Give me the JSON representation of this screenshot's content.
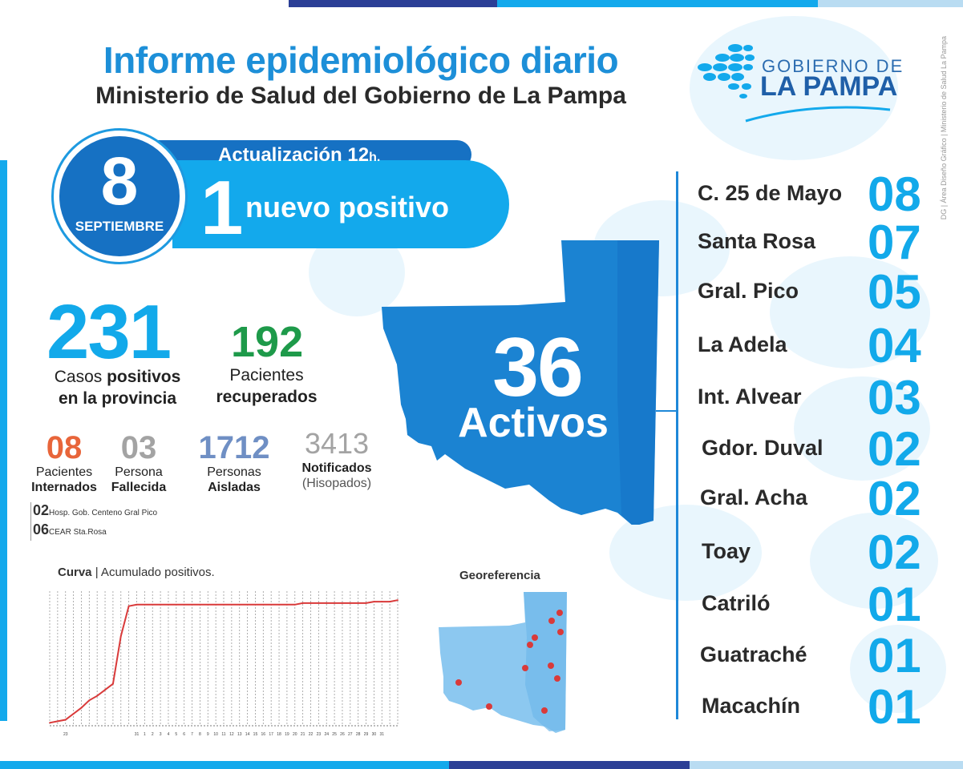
{
  "header": {
    "title": "Informe epidemiológico diario",
    "subtitle": "Ministerio de Salud del Gobierno de La Pampa",
    "logo_line1": "GOBIERNO DE",
    "logo_line2": "LA PAMPA",
    "credit": "DG | Área Diseño Gráfico | Ministerio de Salud La Pampa"
  },
  "date": {
    "day": "8",
    "month": "SEPTIEMBRE"
  },
  "update": {
    "label": "Actualización 12",
    "suffix": "h.",
    "new_count": "1",
    "new_label": "nuevo positivo"
  },
  "totals": {
    "cases": "231",
    "cases_label_a": "Casos ",
    "cases_label_b": "positivos",
    "cases_label_c": "en la provincia",
    "recovered": "192",
    "recovered_label_a": "Pacientes",
    "recovered_label_b": "recuperados"
  },
  "stats": [
    {
      "value": "08",
      "line1": "Pacientes",
      "line2": "Internados",
      "color": "#e8653a"
    },
    {
      "value": "03",
      "line1": "Persona",
      "line2": "Fallecida",
      "color": "#a3a3a3"
    },
    {
      "value": "1712",
      "line1": "Personas",
      "line2": "Aisladas",
      "color": "#6f8fc4"
    },
    {
      "value": "3413",
      "line1": "Notificados",
      "line2": "(Hisopados)",
      "color": "#a3a3a3"
    }
  ],
  "hospital": [
    {
      "count": "02",
      "name": "Hosp. Gob. Centeno Gral Pico"
    },
    {
      "count": "06",
      "name": "CEAR Sta.Rosa"
    }
  ],
  "active": {
    "count": "36",
    "label": "Activos"
  },
  "localities": [
    {
      "name": "C. 25 de Mayo",
      "count": "08"
    },
    {
      "name": "Santa Rosa",
      "count": "07"
    },
    {
      "name": "Gral. Pico",
      "count": "05"
    },
    {
      "name": "La Adela",
      "count": "04"
    },
    {
      "name": "Int. Alvear",
      "count": "03"
    },
    {
      "name": "Gdor. Duval",
      "count": "02"
    },
    {
      "name": "Gral. Acha",
      "count": "02"
    },
    {
      "name": "Toay",
      "count": "02"
    },
    {
      "name": "Catriló",
      "count": "01"
    },
    {
      "name": "Guatraché",
      "count": "01"
    },
    {
      "name": "Macachín",
      "count": "01"
    }
  ],
  "curve": {
    "title_bold": "Curva",
    "title_rest": " | Acumulado positivos.",
    "line_color": "#d93a3a"
  },
  "chart_data": {
    "type": "line",
    "values": [
      2,
      3,
      4,
      8,
      12,
      17,
      20,
      24,
      28,
      60,
      80,
      81,
      81,
      81,
      81,
      81,
      81,
      81,
      81,
      81,
      81,
      81,
      81,
      81,
      81,
      81,
      81,
      81,
      81,
      81,
      81,
      81,
      82,
      82,
      82,
      82,
      82,
      82,
      82,
      82,
      82,
      83,
      83,
      83,
      84
    ],
    "ylim": [
      0,
      90
    ],
    "tick_labels": [
      "23",
      "31",
      "1",
      "2",
      "3",
      "4",
      "5",
      "6",
      "7",
      "8",
      "9",
      "10",
      "11",
      "12",
      "13",
      "14",
      "15",
      "16",
      "17",
      "18",
      "19",
      "20",
      "21",
      "22",
      "23",
      "24",
      "25",
      "26",
      "27",
      "28",
      "29",
      "30",
      "31"
    ]
  },
  "geo": {
    "title": "Georeferencia",
    "dot_color": "#d93a3a"
  },
  "colors": {
    "brand_blue": "#1d8fd8",
    "dark_blue": "#1671c3",
    "light_blue": "#13a9ec"
  }
}
